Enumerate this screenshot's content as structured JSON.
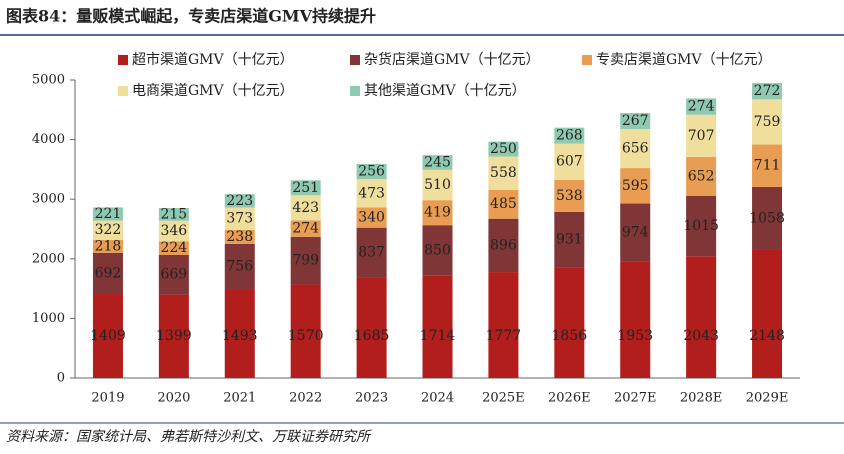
{
  "title": "图表84：量贩模式崛起，专卖店渠道GMV持续提升",
  "source": "资料来源：国家统计局、弗若斯特沙利文、万联证券研究所",
  "chart_data": {
    "type": "stacked_bar",
    "categories": [
      "2019",
      "2020",
      "2021",
      "2022",
      "2023",
      "2024",
      "2025E",
      "2026E",
      "2027E",
      "2028E",
      "2029E"
    ],
    "series": [
      {
        "name": "超市渠道GMV（十亿元）",
        "color": "#b11e1c",
        "values": [
          1409,
          1399,
          1493,
          1570,
          1685,
          1714,
          1777,
          1856,
          1953,
          2043,
          2148
        ]
      },
      {
        "name": "杂货店渠道GMV（十亿元）",
        "color": "#803636",
        "values": [
          692,
          669,
          756,
          799,
          837,
          850,
          896,
          931,
          974,
          1015,
          1058
        ]
      },
      {
        "name": "专卖店渠道GMV（十亿元）",
        "color": "#e89d52",
        "values": [
          218,
          224,
          238,
          274,
          340,
          419,
          485,
          538,
          595,
          652,
          711
        ]
      },
      {
        "name": "电商渠道GMV（十亿元）",
        "color": "#f0df9c",
        "values": [
          322,
          346,
          373,
          423,
          473,
          510,
          558,
          607,
          656,
          707,
          759
        ]
      },
      {
        "name": "其他渠道GMV（十亿元）",
        "color": "#8fc9b2",
        "values": [
          221,
          215,
          223,
          251,
          256,
          245,
          250,
          268,
          267,
          274,
          272
        ]
      }
    ],
    "ylim": [
      0,
      5000
    ],
    "yticks": [
      0,
      1000,
      2000,
      3000,
      4000,
      5000
    ]
  }
}
